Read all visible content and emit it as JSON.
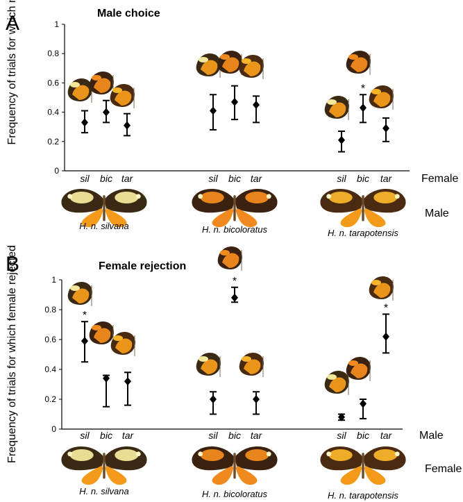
{
  "chart_data": [
    {
      "panel": "A",
      "type": "scatter",
      "title": "Male choice",
      "ylabel": "Frequency of trials for which male courted",
      "ylim": [
        0,
        1
      ],
      "yticks": [
        "0",
        "0.2",
        "0.4",
        "0.6",
        "0.8",
        "1"
      ],
      "row_label": "Female",
      "group_row_label": "Male",
      "groups": [
        {
          "name": "H. n. silvana",
          "points": [
            {
              "label": "sil",
              "y": 0.33,
              "low": 0.26,
              "high": 0.41,
              "sig": false
            },
            {
              "label": "bic",
              "y": 0.4,
              "low": 0.33,
              "high": 0.48,
              "sig": false
            },
            {
              "label": "tar",
              "y": 0.31,
              "low": 0.24,
              "high": 0.39,
              "sig": false
            }
          ]
        },
        {
          "name": "H. n. bicoloratus",
          "points": [
            {
              "label": "sil",
              "y": 0.41,
              "low": 0.28,
              "high": 0.52,
              "sig": false
            },
            {
              "label": "bic",
              "y": 0.47,
              "low": 0.35,
              "high": 0.58,
              "sig": false
            },
            {
              "label": "tar",
              "y": 0.45,
              "low": 0.33,
              "high": 0.51,
              "sig": false
            }
          ]
        },
        {
          "name": "H. n. tarapotensis",
          "points": [
            {
              "label": "sil",
              "y": 0.21,
              "low": 0.13,
              "high": 0.27,
              "sig": false
            },
            {
              "label": "bic",
              "y": 0.43,
              "low": 0.33,
              "high": 0.52,
              "sig": true
            },
            {
              "label": "tar",
              "y": 0.29,
              "low": 0.2,
              "high": 0.36,
              "sig": false
            }
          ]
        }
      ]
    },
    {
      "panel": "B",
      "type": "scatter",
      "title": "Female rejection",
      "ylabel": "Frequency of trials for which female rejected",
      "ylim": [
        0,
        1
      ],
      "yticks": [
        "0",
        "0.2",
        "0.4",
        "0.6",
        "0.8",
        "1"
      ],
      "row_label": "Male",
      "group_row_label": "Female",
      "groups": [
        {
          "name": "H. n. silvana",
          "points": [
            {
              "label": "sil",
              "y": 0.59,
              "low": 0.45,
              "high": 0.72,
              "sig": true
            },
            {
              "label": "bic",
              "y": 0.34,
              "low": 0.15,
              "high": 0.36,
              "sig": false
            },
            {
              "label": "tar",
              "y": 0.32,
              "low": 0.16,
              "high": 0.38,
              "sig": false
            }
          ]
        },
        {
          "name": "H. n. bicoloratus",
          "points": [
            {
              "label": "sil",
              "y": 0.2,
              "low": 0.1,
              "high": 0.25,
              "sig": false
            },
            {
              "label": "bic",
              "y": 0.88,
              "low": 0.85,
              "high": 0.95,
              "sig": true
            },
            {
              "label": "tar",
              "y": 0.2,
              "low": 0.1,
              "high": 0.25,
              "sig": false
            }
          ]
        },
        {
          "name": "H. n. tarapotensis",
          "points": [
            {
              "label": "sil",
              "y": 0.08,
              "low": 0.06,
              "high": 0.1,
              "sig": false
            },
            {
              "label": "bic",
              "y": 0.17,
              "low": 0.07,
              "high": 0.2,
              "sig": false
            },
            {
              "label": "tar",
              "y": 0.62,
              "low": 0.51,
              "high": 0.77,
              "sig": true
            }
          ]
        }
      ]
    }
  ],
  "marker_color": "#000000",
  "morph_colors": {
    "H. n. silvana": {
      "body": "#3a2a14",
      "patch": "#f2e79a",
      "orange": "#f39a1b"
    },
    "H. n. bicoloratus": {
      "body": "#3a2110",
      "patch": "#f08a1e",
      "orange": "#f08a1e"
    },
    "H. n. tarapotensis": {
      "body": "#4a2a10",
      "patch": "#f6b42a",
      "orange": "#f39a1b"
    }
  }
}
